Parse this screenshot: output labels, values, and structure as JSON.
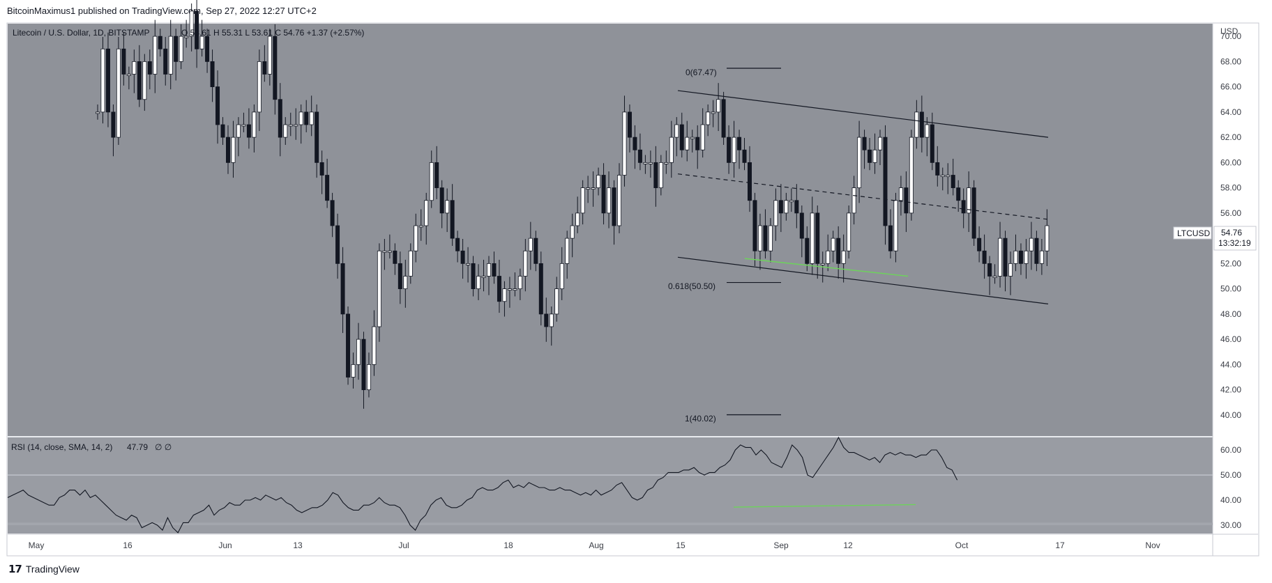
{
  "header": {
    "publish_line": "BitcoinMaximus1 published on TradingView.com, Sep 27, 2022 12:27 UTC+2"
  },
  "footer": {
    "brand": "TradingView"
  },
  "legend": {
    "symbol_title": "Litecoin / U.S. Dollar, 1D, BITSTAMP",
    "ohlc": "O 53.61  H 55.31  L 53.61  C 54.76  +1.37 (+2.57%)"
  },
  "price_axis": {
    "currency": "USD",
    "ticks": [
      "70.00",
      "68.00",
      "66.00",
      "64.00",
      "62.00",
      "60.00",
      "58.00",
      "56.00",
      "54.00",
      "52.00",
      "50.00",
      "48.00",
      "46.00",
      "44.00",
      "42.00",
      "40.00"
    ]
  },
  "rsi": {
    "legend": "RSI (14, close, SMA, 14, 2)",
    "value": "47.79",
    "extra": "∅  ∅",
    "ticks": [
      "60.00",
      "50.00",
      "40.00",
      "30.00"
    ]
  },
  "time_axis": {
    "labels": [
      "May",
      "16",
      "Jun",
      "13",
      "Jul",
      "18",
      "Aug",
      "15",
      "Sep",
      "12",
      "Oct",
      "17",
      "Nov"
    ]
  },
  "price_label": {
    "symbol": "LTCUSD",
    "price": "54.76",
    "countdown": "13:32:19"
  },
  "fib_labels": {
    "level_0": "0(67.47)",
    "level_0618": "0.618(50.50)",
    "level_1": "1(40.02)"
  },
  "colors": {
    "panel_bg": "#8f9299",
    "rsi_bg": "#999ca3",
    "candle_up": "#ffffff",
    "candle_down": "#131722",
    "support_line": "#6dd35b",
    "grid": "#b9bcc2"
  },
  "chart_data": [
    {
      "type": "candlestick",
      "title": "Litecoin / U.S. Dollar, 1D, BITSTAMP",
      "ylabel": "USD",
      "ylim": [
        39,
        71
      ],
      "grid": false,
      "x_axis_labels": [
        "May",
        "16",
        "Jun",
        "13",
        "Jul",
        "18",
        "Aug",
        "15",
        "Sep",
        "12",
        "Oct",
        "17",
        "Nov"
      ],
      "close_series": [
        64,
        69,
        64,
        62,
        69,
        67,
        67,
        68,
        65,
        68,
        67,
        70,
        69,
        67,
        70,
        68,
        70,
        70,
        72,
        69,
        70,
        68,
        66,
        63,
        62,
        60,
        62,
        63,
        63,
        62,
        64,
        68,
        67,
        70,
        65,
        62,
        63,
        63,
        63,
        64,
        63,
        64,
        60,
        59,
        57,
        55,
        52,
        48,
        43,
        44,
        46,
        42,
        44,
        47,
        53,
        53,
        53,
        52,
        50,
        51,
        53,
        55,
        55,
        57,
        60,
        58,
        56,
        57,
        54,
        53,
        52,
        52,
        50,
        51,
        51,
        52,
        51,
        49,
        50,
        50,
        50,
        51,
        53,
        54,
        52,
        48,
        47,
        48,
        50,
        52,
        54,
        55,
        56,
        58,
        58,
        58,
        59,
        56,
        58,
        55,
        59,
        64,
        62,
        61,
        60,
        60,
        60,
        58,
        60,
        60,
        62,
        63,
        61,
        62,
        62,
        61,
        63,
        64,
        64,
        65,
        62,
        60,
        62,
        61,
        60,
        57,
        53,
        55,
        53,
        55,
        57,
        56,
        57,
        57,
        56,
        54,
        52,
        56,
        52,
        52,
        53,
        54,
        52,
        53,
        56,
        58,
        62,
        61,
        60,
        61,
        62,
        55,
        53,
        57,
        58,
        56,
        62,
        64,
        62,
        63,
        60,
        59,
        59,
        59,
        58,
        57,
        56,
        58,
        54,
        53,
        52,
        51,
        51,
        54,
        51,
        52,
        53,
        52,
        53,
        54,
        52,
        53,
        55
      ],
      "annotations": [
        "0(67.47)",
        "0.618(50.50)",
        "1(40.02)"
      ]
    },
    {
      "type": "line",
      "title": "RSI (14, close, SMA, 14, 2)",
      "ylim": [
        30,
        65
      ],
      "last_value": 47.79,
      "series": [
        {
          "values": [
            41,
            42,
            43,
            44,
            42,
            41,
            40,
            39,
            38,
            38,
            41,
            42,
            44,
            44,
            42,
            44,
            41,
            42,
            40,
            38,
            36,
            34,
            33,
            32,
            34,
            33,
            29,
            30,
            31,
            30,
            28,
            33,
            29,
            27,
            31,
            31,
            34,
            35,
            36,
            38,
            34,
            36,
            37,
            39,
            38,
            38,
            40,
            40,
            41,
            40,
            42,
            41,
            40,
            41,
            39,
            38,
            36,
            35,
            36,
            37,
            37,
            38,
            40,
            43,
            42,
            39,
            37,
            36,
            36,
            38,
            38,
            39,
            41,
            39,
            38,
            38,
            37,
            34,
            30,
            28,
            32,
            34,
            38,
            40,
            41,
            38,
            37,
            37,
            38,
            40,
            41,
            44,
            45,
            44,
            44,
            45,
            47,
            48,
            45,
            46,
            45,
            47,
            46,
            45,
            45,
            44,
            44,
            45,
            44,
            44,
            43,
            42,
            43,
            42,
            44,
            42,
            43,
            44,
            46,
            47,
            44,
            41,
            40,
            41,
            44,
            45,
            48,
            49,
            51,
            51,
            51,
            52,
            52,
            53,
            51,
            50,
            51,
            51,
            53,
            54,
            56,
            60,
            62,
            61,
            61,
            58,
            60,
            58,
            55,
            54,
            53,
            57,
            62,
            60,
            57,
            50,
            49,
            52,
            55,
            58,
            61,
            65,
            61,
            59,
            59,
            58,
            57,
            56,
            57,
            55,
            58,
            59,
            58,
            59,
            58,
            58,
            57,
            58,
            58,
            60,
            60,
            57,
            53,
            52,
            48
          ]
        }
      ]
    }
  ]
}
